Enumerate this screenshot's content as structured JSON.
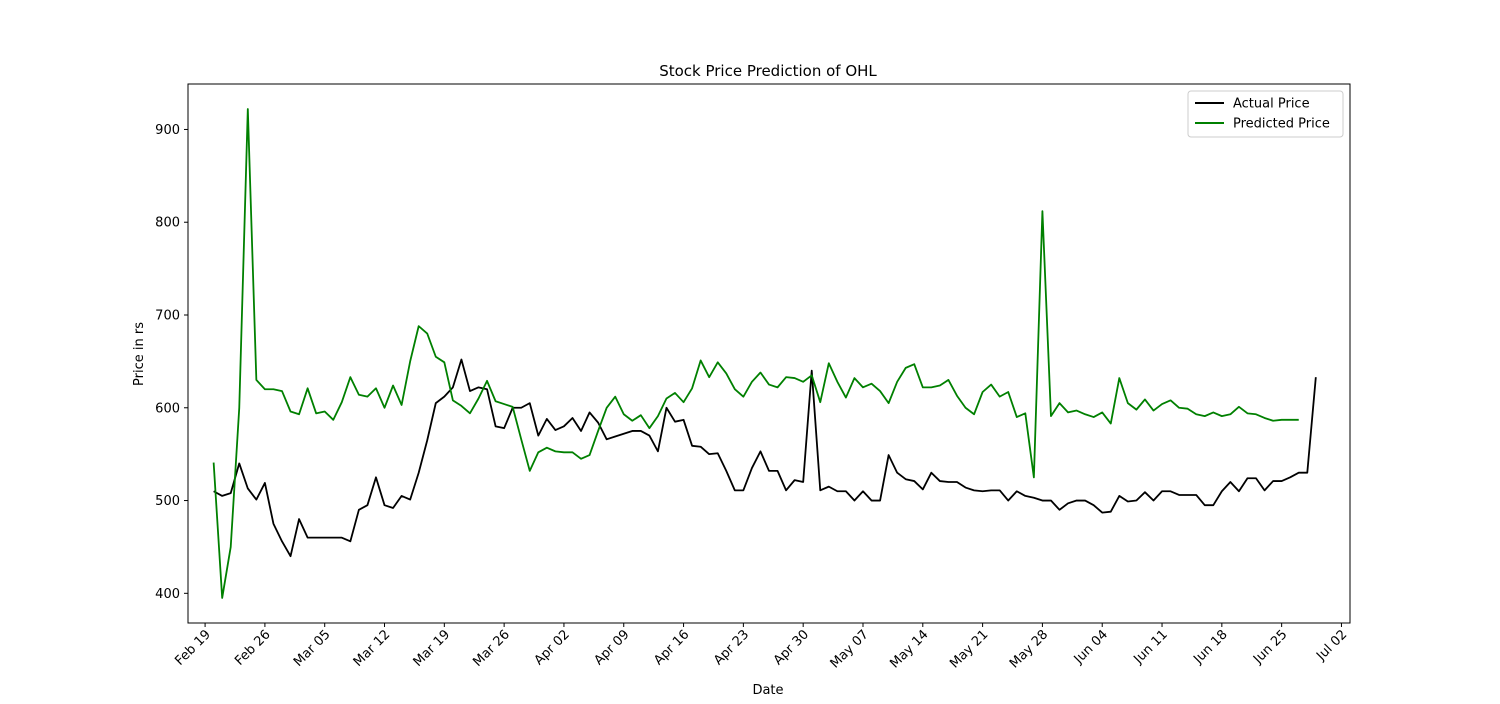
{
  "chart_data": {
    "type": "line",
    "title": "Stock Price Prediction of OHL",
    "xlabel": "Date",
    "ylabel": "Price in rs",
    "ylim": [
      368,
      949
    ],
    "xlim": [
      "2018-02-17",
      "2018-07-03"
    ],
    "yticks": [
      400,
      500,
      600,
      700,
      800,
      900
    ],
    "xticks": [
      {
        "date": "2018-02-19",
        "label": "Feb 19"
      },
      {
        "date": "2018-02-26",
        "label": "Feb 26"
      },
      {
        "date": "2018-03-05",
        "label": "Mar 05"
      },
      {
        "date": "2018-03-12",
        "label": "Mar 12"
      },
      {
        "date": "2018-03-19",
        "label": "Mar 19"
      },
      {
        "date": "2018-03-26",
        "label": "Mar 26"
      },
      {
        "date": "2018-04-02",
        "label": "Apr 02"
      },
      {
        "date": "2018-04-09",
        "label": "Apr 09"
      },
      {
        "date": "2018-04-16",
        "label": "Apr 16"
      },
      {
        "date": "2018-04-23",
        "label": "Apr 23"
      },
      {
        "date": "2018-04-30",
        "label": "Apr 30"
      },
      {
        "date": "2018-05-07",
        "label": "May 07"
      },
      {
        "date": "2018-05-14",
        "label": "May 14"
      },
      {
        "date": "2018-05-21",
        "label": "May 21"
      },
      {
        "date": "2018-05-28",
        "label": "May 28"
      },
      {
        "date": "2018-06-04",
        "label": "Jun 04"
      },
      {
        "date": "2018-06-11",
        "label": "Jun 11"
      },
      {
        "date": "2018-06-18",
        "label": "Jun 18"
      },
      {
        "date": "2018-06-25",
        "label": "Jun 25"
      },
      {
        "date": "2018-07-02",
        "label": "Jul 02"
      }
    ],
    "grid": false,
    "legend": "top-right",
    "series": [
      {
        "name": "Actual Price",
        "color": "#000000",
        "points": [
          [
            "2018-02-20",
            510
          ],
          [
            "2018-02-21",
            505
          ],
          [
            "2018-02-22",
            508
          ],
          [
            "2018-02-23",
            540
          ],
          [
            "2018-02-24",
            513
          ],
          [
            "2018-02-25",
            501
          ],
          [
            "2018-02-26",
            519
          ],
          [
            "2018-02-27",
            475
          ],
          [
            "2018-02-28",
            456
          ],
          [
            "2018-03-01",
            440
          ],
          [
            "2018-03-02",
            480
          ],
          [
            "2018-03-03",
            460
          ],
          [
            "2018-03-04",
            460
          ],
          [
            "2018-03-05",
            460
          ],
          [
            "2018-03-06",
            460
          ],
          [
            "2018-03-07",
            460
          ],
          [
            "2018-03-08",
            456
          ],
          [
            "2018-03-09",
            490
          ],
          [
            "2018-03-10",
            495
          ],
          [
            "2018-03-11",
            525
          ],
          [
            "2018-03-12",
            495
          ],
          [
            "2018-03-13",
            492
          ],
          [
            "2018-03-14",
            505
          ],
          [
            "2018-03-15",
            501
          ],
          [
            "2018-03-16",
            530
          ],
          [
            "2018-03-17",
            565
          ],
          [
            "2018-03-18",
            605
          ],
          [
            "2018-03-19",
            612
          ],
          [
            "2018-03-20",
            622
          ],
          [
            "2018-03-21",
            652
          ],
          [
            "2018-03-22",
            618
          ],
          [
            "2018-03-23",
            622
          ],
          [
            "2018-03-24",
            620
          ],
          [
            "2018-03-25",
            580
          ],
          [
            "2018-03-26",
            578
          ],
          [
            "2018-03-27",
            600
          ],
          [
            "2018-03-28",
            600
          ],
          [
            "2018-03-29",
            605
          ],
          [
            "2018-03-30",
            570
          ],
          [
            "2018-03-31",
            588
          ],
          [
            "2018-04-01",
            576
          ],
          [
            "2018-04-02",
            580
          ],
          [
            "2018-04-03",
            589
          ],
          [
            "2018-04-04",
            575
          ],
          [
            "2018-04-05",
            595
          ],
          [
            "2018-04-06",
            584
          ],
          [
            "2018-04-07",
            566
          ],
          [
            "2018-04-08",
            569
          ],
          [
            "2018-04-09",
            572
          ],
          [
            "2018-04-10",
            575
          ],
          [
            "2018-04-11",
            575
          ],
          [
            "2018-04-12",
            570
          ],
          [
            "2018-04-13",
            553
          ],
          [
            "2018-04-14",
            600
          ],
          [
            "2018-04-15",
            585
          ],
          [
            "2018-04-16",
            587
          ],
          [
            "2018-04-17",
            559
          ],
          [
            "2018-04-18",
            558
          ],
          [
            "2018-04-19",
            550
          ],
          [
            "2018-04-20",
            551
          ],
          [
            "2018-04-21",
            532
          ],
          [
            "2018-04-22",
            511
          ],
          [
            "2018-04-23",
            511
          ],
          [
            "2018-04-24",
            535
          ],
          [
            "2018-04-25",
            553
          ],
          [
            "2018-04-26",
            532
          ],
          [
            "2018-04-27",
            532
          ],
          [
            "2018-04-28",
            511
          ],
          [
            "2018-04-29",
            522
          ],
          [
            "2018-04-30",
            520
          ],
          [
            "2018-05-01",
            640
          ],
          [
            "2018-05-02",
            511
          ],
          [
            "2018-05-03",
            515
          ],
          [
            "2018-05-04",
            510
          ],
          [
            "2018-05-05",
            510
          ],
          [
            "2018-05-06",
            500
          ],
          [
            "2018-05-07",
            510
          ],
          [
            "2018-05-08",
            500
          ],
          [
            "2018-05-09",
            500
          ],
          [
            "2018-05-10",
            549
          ],
          [
            "2018-05-11",
            530
          ],
          [
            "2018-05-12",
            523
          ],
          [
            "2018-05-13",
            521
          ],
          [
            "2018-05-14",
            512
          ],
          [
            "2018-05-15",
            530
          ],
          [
            "2018-05-16",
            521
          ],
          [
            "2018-05-17",
            520
          ],
          [
            "2018-05-18",
            520
          ],
          [
            "2018-05-19",
            514
          ],
          [
            "2018-05-20",
            511
          ],
          [
            "2018-05-21",
            510
          ],
          [
            "2018-05-22",
            511
          ],
          [
            "2018-05-23",
            511
          ],
          [
            "2018-05-24",
            500
          ],
          [
            "2018-05-25",
            510
          ],
          [
            "2018-05-26",
            505
          ],
          [
            "2018-05-27",
            503
          ],
          [
            "2018-05-28",
            500
          ],
          [
            "2018-05-29",
            500
          ],
          [
            "2018-05-30",
            490
          ],
          [
            "2018-05-31",
            497
          ],
          [
            "2018-06-01",
            500
          ],
          [
            "2018-06-02",
            500
          ],
          [
            "2018-06-03",
            495
          ],
          [
            "2018-06-04",
            487
          ],
          [
            "2018-06-05",
            488
          ],
          [
            "2018-06-06",
            505
          ],
          [
            "2018-06-07",
            499
          ],
          [
            "2018-06-08",
            500
          ],
          [
            "2018-06-09",
            509
          ],
          [
            "2018-06-10",
            500
          ],
          [
            "2018-06-11",
            510
          ],
          [
            "2018-06-12",
            510
          ],
          [
            "2018-06-13",
            506
          ],
          [
            "2018-06-14",
            506
          ],
          [
            "2018-06-15",
            506
          ],
          [
            "2018-06-16",
            495
          ],
          [
            "2018-06-17",
            495
          ],
          [
            "2018-06-18",
            510
          ],
          [
            "2018-06-19",
            520
          ],
          [
            "2018-06-20",
            510
          ],
          [
            "2018-06-21",
            524
          ],
          [
            "2018-06-22",
            524
          ],
          [
            "2018-06-23",
            511
          ],
          [
            "2018-06-24",
            521
          ],
          [
            "2018-06-25",
            521
          ],
          [
            "2018-06-26",
            525
          ],
          [
            "2018-06-27",
            530
          ],
          [
            "2018-06-28",
            530
          ],
          [
            "2018-06-29",
            633
          ]
        ]
      },
      {
        "name": "Predicted Price",
        "color": "#008000",
        "points": [
          [
            "2018-02-20",
            541
          ],
          [
            "2018-02-21",
            395
          ],
          [
            "2018-02-22",
            450
          ],
          [
            "2018-02-23",
            600
          ],
          [
            "2018-02-24",
            922
          ],
          [
            "2018-02-25",
            630
          ],
          [
            "2018-02-26",
            620
          ],
          [
            "2018-02-27",
            620
          ],
          [
            "2018-02-28",
            618
          ],
          [
            "2018-03-01",
            596
          ],
          [
            "2018-03-02",
            593
          ],
          [
            "2018-03-03",
            621
          ],
          [
            "2018-03-04",
            594
          ],
          [
            "2018-03-05",
            596
          ],
          [
            "2018-03-06",
            587
          ],
          [
            "2018-03-07",
            606
          ],
          [
            "2018-03-08",
            633
          ],
          [
            "2018-03-09",
            614
          ],
          [
            "2018-03-10",
            612
          ],
          [
            "2018-03-11",
            621
          ],
          [
            "2018-03-12",
            600
          ],
          [
            "2018-03-13",
            624
          ],
          [
            "2018-03-14",
            603
          ],
          [
            "2018-03-15",
            650
          ],
          [
            "2018-03-16",
            688
          ],
          [
            "2018-03-17",
            680
          ],
          [
            "2018-03-18",
            655
          ],
          [
            "2018-03-19",
            649
          ],
          [
            "2018-03-20",
            608
          ],
          [
            "2018-03-21",
            602
          ],
          [
            "2018-03-22",
            594
          ],
          [
            "2018-03-23",
            610
          ],
          [
            "2018-03-24",
            629
          ],
          [
            "2018-03-25",
            607
          ],
          [
            "2018-03-26",
            604
          ],
          [
            "2018-03-27",
            601
          ],
          [
            "2018-03-28",
            566
          ],
          [
            "2018-03-29",
            532
          ],
          [
            "2018-03-30",
            552
          ],
          [
            "2018-03-31",
            557
          ],
          [
            "2018-04-01",
            553
          ],
          [
            "2018-04-02",
            552
          ],
          [
            "2018-04-03",
            552
          ],
          [
            "2018-04-04",
            545
          ],
          [
            "2018-04-05",
            549
          ],
          [
            "2018-04-06",
            575
          ],
          [
            "2018-04-07",
            600
          ],
          [
            "2018-04-08",
            612
          ],
          [
            "2018-04-09",
            593
          ],
          [
            "2018-04-10",
            586
          ],
          [
            "2018-04-11",
            592
          ],
          [
            "2018-04-12",
            578
          ],
          [
            "2018-04-13",
            591
          ],
          [
            "2018-04-14",
            610
          ],
          [
            "2018-04-15",
            616
          ],
          [
            "2018-04-16",
            606
          ],
          [
            "2018-04-17",
            621
          ],
          [
            "2018-04-18",
            651
          ],
          [
            "2018-04-19",
            633
          ],
          [
            "2018-04-20",
            649
          ],
          [
            "2018-04-21",
            637
          ],
          [
            "2018-04-22",
            620
          ],
          [
            "2018-04-23",
            612
          ],
          [
            "2018-04-24",
            628
          ],
          [
            "2018-04-25",
            638
          ],
          [
            "2018-04-26",
            625
          ],
          [
            "2018-04-27",
            622
          ],
          [
            "2018-04-28",
            633
          ],
          [
            "2018-04-29",
            632
          ],
          [
            "2018-04-30",
            628
          ],
          [
            "2018-05-01",
            635
          ],
          [
            "2018-05-02",
            606
          ],
          [
            "2018-05-03",
            648
          ],
          [
            "2018-05-04",
            628
          ],
          [
            "2018-05-05",
            611
          ],
          [
            "2018-05-06",
            632
          ],
          [
            "2018-05-07",
            622
          ],
          [
            "2018-05-08",
            626
          ],
          [
            "2018-05-09",
            618
          ],
          [
            "2018-05-10",
            605
          ],
          [
            "2018-05-11",
            628
          ],
          [
            "2018-05-12",
            643
          ],
          [
            "2018-05-13",
            647
          ],
          [
            "2018-05-14",
            622
          ],
          [
            "2018-05-15",
            622
          ],
          [
            "2018-05-16",
            624
          ],
          [
            "2018-05-17",
            630
          ],
          [
            "2018-05-18",
            613
          ],
          [
            "2018-05-19",
            600
          ],
          [
            "2018-05-20",
            593
          ],
          [
            "2018-05-21",
            617
          ],
          [
            "2018-05-22",
            625
          ],
          [
            "2018-05-23",
            612
          ],
          [
            "2018-05-24",
            617
          ],
          [
            "2018-05-25",
            590
          ],
          [
            "2018-05-26",
            594
          ],
          [
            "2018-05-27",
            525
          ],
          [
            "2018-05-28",
            812
          ],
          [
            "2018-05-29",
            591
          ],
          [
            "2018-05-30",
            605
          ],
          [
            "2018-05-31",
            595
          ],
          [
            "2018-06-01",
            597
          ],
          [
            "2018-06-02",
            593
          ],
          [
            "2018-06-03",
            590
          ],
          [
            "2018-06-04",
            595
          ],
          [
            "2018-06-05",
            583
          ],
          [
            "2018-06-06",
            632
          ],
          [
            "2018-06-07",
            605
          ],
          [
            "2018-06-08",
            598
          ],
          [
            "2018-06-09",
            609
          ],
          [
            "2018-06-10",
            597
          ],
          [
            "2018-06-11",
            604
          ],
          [
            "2018-06-12",
            608
          ],
          [
            "2018-06-13",
            600
          ],
          [
            "2018-06-14",
            599
          ],
          [
            "2018-06-15",
            593
          ],
          [
            "2018-06-16",
            591
          ],
          [
            "2018-06-17",
            595
          ],
          [
            "2018-06-18",
            591
          ],
          [
            "2018-06-19",
            593
          ],
          [
            "2018-06-20",
            601
          ],
          [
            "2018-06-21",
            594
          ],
          [
            "2018-06-22",
            593
          ],
          [
            "2018-06-23",
            589
          ],
          [
            "2018-06-24",
            586
          ],
          [
            "2018-06-25",
            587
          ],
          [
            "2018-06-26",
            587
          ],
          [
            "2018-06-27",
            587
          ]
        ]
      }
    ]
  }
}
